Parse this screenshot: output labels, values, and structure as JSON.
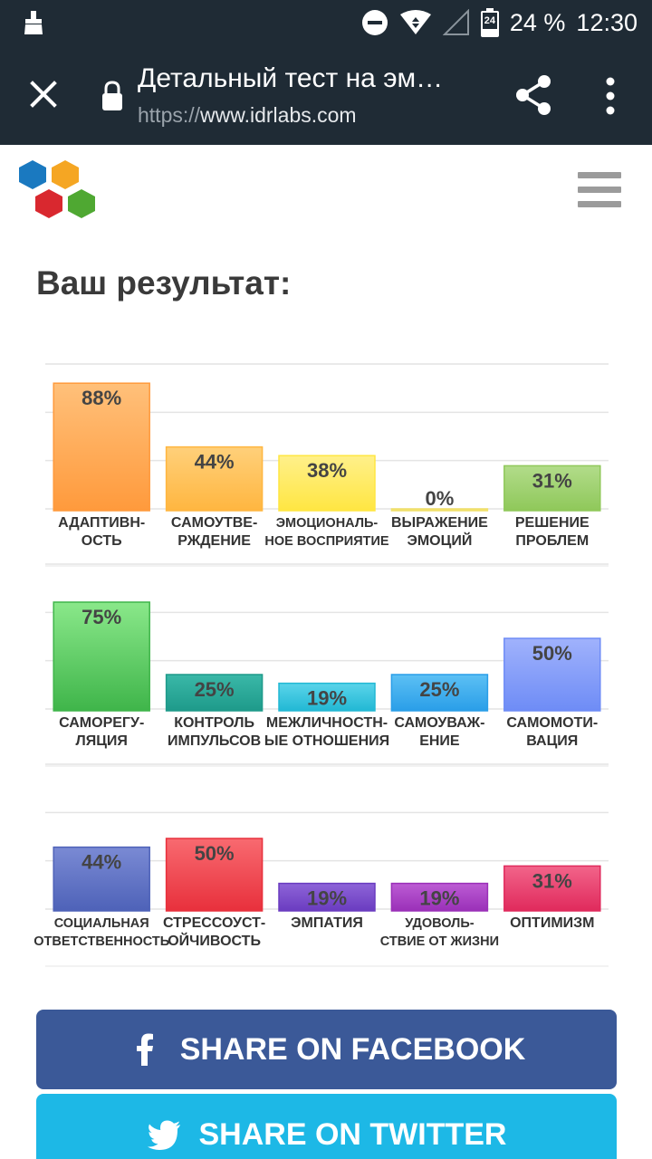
{
  "status_bar": {
    "battery_badge": "24",
    "battery": "24 %",
    "time": "12:30"
  },
  "browser": {
    "page_title": "Детальный тест на эм…",
    "url_scheme": "https://",
    "url_host": "www.idrlabs.com"
  },
  "page": {
    "heading": "Ваш результат:"
  },
  "chart_data": {
    "type": "bar",
    "ylim": [
      0,
      100
    ],
    "grid": true,
    "rows": [
      {
        "bars": [
          {
            "label": [
              "АДАПТИВН-",
              "ОСТЬ"
            ],
            "value": 88,
            "value_label": "88%",
            "color": "#ff9a3c",
            "color_top": "#ffc07a"
          },
          {
            "label": [
              "САМОУТВЕ-",
              "РЖДЕНИЕ"
            ],
            "value": 44,
            "value_label": "44%",
            "color": "#ffb640",
            "color_top": "#ffd07a"
          },
          {
            "label": [
              "ЭМОЦИОНАЛЬ-",
              "НОЕ ВОСПРИЯТИЕ"
            ],
            "value": 38,
            "value_label": "38%",
            "color": "#ffe642",
            "color_top": "#fff08a"
          },
          {
            "label": [
              "ВЫРАЖЕНИЕ",
              "ЭМОЦИЙ"
            ],
            "value": 0,
            "value_label": "0%",
            "color": "#f1e06a",
            "color_top": "#f1e06a"
          },
          {
            "label": [
              "РЕШЕНИЕ",
              "ПРОБЛЕМ"
            ],
            "value": 31,
            "value_label": "31%",
            "color": "#8fc85a",
            "color_top": "#b2dc8a"
          }
        ]
      },
      {
        "bars": [
          {
            "label": [
              "САМОРЕГУ-",
              "ЛЯЦИЯ"
            ],
            "value": 75,
            "value_label": "75%",
            "color": "#3fb54a",
            "color_top": "#8ae88a"
          },
          {
            "label": [
              "КОНТРОЛЬ",
              "ИМПУЛЬСОВ"
            ],
            "value": 25,
            "value_label": "25%",
            "color": "#1e9a8a",
            "color_top": "#3ab8a8"
          },
          {
            "label": [
              "МЕЖЛИЧНОСТН-",
              "ЫЕ ОТНОШЕНИЯ"
            ],
            "value": 19,
            "value_label": "19%",
            "color": "#22b8d4",
            "color_top": "#5ad4ea"
          },
          {
            "label": [
              "САМОУВАЖ-",
              "ЕНИЕ"
            ],
            "value": 25,
            "value_label": "25%",
            "color": "#2a9ee8",
            "color_top": "#5cc0f4"
          },
          {
            "label": [
              "САМОМОТИ-",
              "ВАЦИЯ"
            ],
            "value": 50,
            "value_label": "50%",
            "color": "#6e8cf6",
            "color_top": "#a0b2fc"
          }
        ]
      },
      {
        "bars": [
          {
            "label": [
              "СОЦИАЛЬНАЯ",
              "ОТВЕТСТВЕННОСТЬ"
            ],
            "value": 44,
            "value_label": "44%",
            "color": "#4e62b8",
            "color_top": "#7a8ad4"
          },
          {
            "label": [
              "СТРЕССОУСТ-",
              "ОЙЧИВОСТЬ"
            ],
            "value": 50,
            "value_label": "50%",
            "color": "#e8303c",
            "color_top": "#f86a70"
          },
          {
            "label": [
              "ЭМПАТИЯ"
            ],
            "value": 19,
            "value_label": "19%",
            "color": "#6a3cc0",
            "color_top": "#8e64d8"
          },
          {
            "label": [
              "УДОВОЛЬ-",
              "СТВИЕ ОТ ЖИЗНИ"
            ],
            "value": 19,
            "value_label": "19%",
            "color": "#9a30b8",
            "color_top": "#bc5cd4"
          },
          {
            "label": [
              "ОПТИМИЗМ"
            ],
            "value": 31,
            "value_label": "31%",
            "color": "#e02a5c",
            "color_top": "#f2648a"
          }
        ]
      }
    ]
  },
  "share": {
    "facebook_label": "SHARE ON FACEBOOK",
    "twitter_label": "SHARE ON TWITTER",
    "facebook_color": "#3b5998",
    "twitter_color": "#1db8e6"
  },
  "icons": {
    "close": "close-icon",
    "lock": "lock-icon",
    "share": "share-icon",
    "more": "more-vert-icon",
    "menu": "hamburger-icon"
  }
}
